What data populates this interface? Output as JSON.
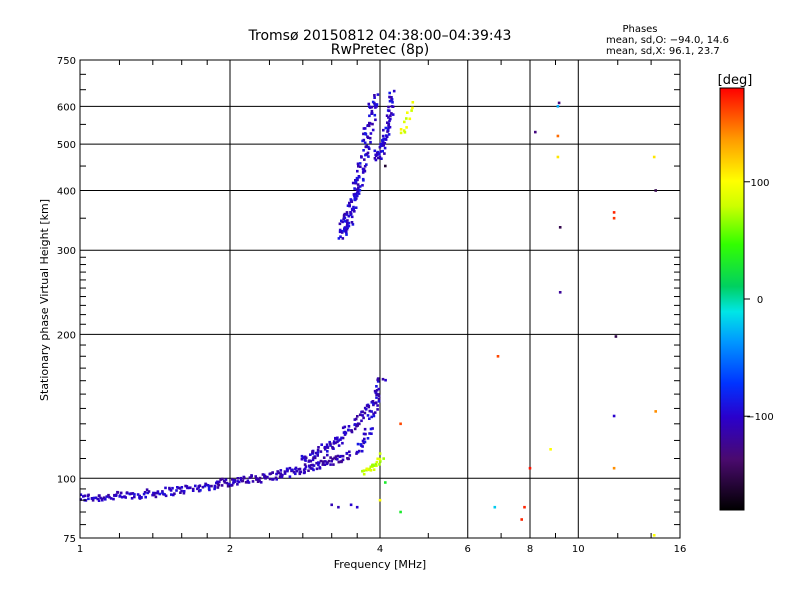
{
  "chart_data": {
    "type": "scatter",
    "title": "Tromsø 20150812 04:38:00–04:39:43",
    "subtitle": "RwPretec (8p)",
    "xlabel": "Frequency [MHz]",
    "ylabel": "Stationary phase Virtual Height [km]",
    "x_scale": "log2",
    "y_scale": "log",
    "xlim": [
      1,
      16
    ],
    "ylim": [
      75,
      750
    ],
    "x_ticks": [
      1,
      2,
      4,
      6,
      8,
      10,
      16
    ],
    "x_tick_labels": [
      "1",
      "2",
      "4",
      "6",
      "8",
      "10",
      "16"
    ],
    "y_ticks": [
      75,
      100,
      200,
      300,
      400,
      500,
      600,
      750
    ],
    "y_tick_labels": [
      "75",
      "100",
      "200",
      "300",
      "400",
      "500",
      "600",
      "750"
    ],
    "grid": true,
    "phases_box": {
      "title": "Phases",
      "line1": "mean, sd,O: −94.0, 14.6",
      "line2": "mean, sd,X:  96.1, 23.7"
    },
    "colorbar": {
      "label": "[deg]",
      "range": [
        -180,
        180
      ],
      "ticks": [
        100,
        0,
        -100
      ],
      "tick_labels": [
        "100",
        "0",
        "−100"
      ]
    },
    "traces": [
      {
        "x_start": 1.0,
        "x_end": 1.9,
        "h_start": 91,
        "h_end": 97,
        "phase": -105,
        "count": 120,
        "jitter": 0.02
      },
      {
        "x_start": 1.9,
        "x_end": 3.5,
        "h_start": 98,
        "h_end": 112,
        "phase": -110,
        "count": 150,
        "jitter": 0.02
      },
      {
        "x_start": 2.8,
        "x_end": 4.0,
        "h_start": 110,
        "h_end": 150,
        "phase": -105,
        "count": 110,
        "jitter": 0.03
      },
      {
        "x_start": 3.6,
        "x_end": 4.05,
        "h_start": 115,
        "h_end": 165,
        "phase": -100,
        "count": 40,
        "jitter": 0.03
      },
      {
        "x_start": 3.35,
        "x_end": 3.9,
        "h_start": 330,
        "h_end": 640,
        "phase": -100,
        "count": 160,
        "jitter": 0.04
      },
      {
        "x_start": 3.95,
        "x_end": 4.25,
        "h_start": 470,
        "h_end": 640,
        "phase": -100,
        "count": 70,
        "jitter": 0.03
      },
      {
        "x_start": 3.7,
        "x_end": 4.05,
        "h_start": 103,
        "h_end": 112,
        "phase": 80,
        "count": 25,
        "jitter": 0.02
      },
      {
        "x_start": 4.4,
        "x_end": 4.65,
        "h_start": 530,
        "h_end": 600,
        "phase": 90,
        "count": 12,
        "jitter": 0.02
      }
    ],
    "points": [
      {
        "x": 3.2,
        "y": 88,
        "phase": -110
      },
      {
        "x": 3.3,
        "y": 87,
        "phase": -110
      },
      {
        "x": 3.5,
        "y": 88,
        "phase": -100
      },
      {
        "x": 3.6,
        "y": 87,
        "phase": -100
      },
      {
        "x": 4.0,
        "y": 90,
        "phase": 100
      },
      {
        "x": 4.1,
        "y": 98,
        "phase": 30
      },
      {
        "x": 4.4,
        "y": 85,
        "phase": 30
      },
      {
        "x": 4.1,
        "y": 450,
        "phase": -160
      },
      {
        "x": 4.4,
        "y": 130,
        "phase": 160
      },
      {
        "x": 6.8,
        "y": 87,
        "phase": -20
      },
      {
        "x": 6.9,
        "y": 180,
        "phase": 160
      },
      {
        "x": 7.7,
        "y": 82,
        "phase": 170
      },
      {
        "x": 7.8,
        "y": 87,
        "phase": 170
      },
      {
        "x": 8.0,
        "y": 105,
        "phase": 175
      },
      {
        "x": 8.2,
        "y": 530,
        "phase": -130
      },
      {
        "x": 8.8,
        "y": 115,
        "phase": 100
      },
      {
        "x": 9.1,
        "y": 600,
        "phase": -30
      },
      {
        "x": 9.15,
        "y": 610,
        "phase": -130
      },
      {
        "x": 9.1,
        "y": 520,
        "phase": 150
      },
      {
        "x": 9.1,
        "y": 470,
        "phase": 110
      },
      {
        "x": 9.2,
        "y": 335,
        "phase": -150
      },
      {
        "x": 9.2,
        "y": 245,
        "phase": -120
      },
      {
        "x": 11.8,
        "y": 360,
        "phase": 170
      },
      {
        "x": 11.8,
        "y": 350,
        "phase": 165
      },
      {
        "x": 11.9,
        "y": 198,
        "phase": -150
      },
      {
        "x": 11.8,
        "y": 135,
        "phase": -100
      },
      {
        "x": 11.8,
        "y": 105,
        "phase": 140
      },
      {
        "x": 14.2,
        "y": 470,
        "phase": 110
      },
      {
        "x": 14.3,
        "y": 400,
        "phase": -150
      },
      {
        "x": 14.3,
        "y": 138,
        "phase": 140
      },
      {
        "x": 14.2,
        "y": 76,
        "phase": 100
      }
    ]
  }
}
